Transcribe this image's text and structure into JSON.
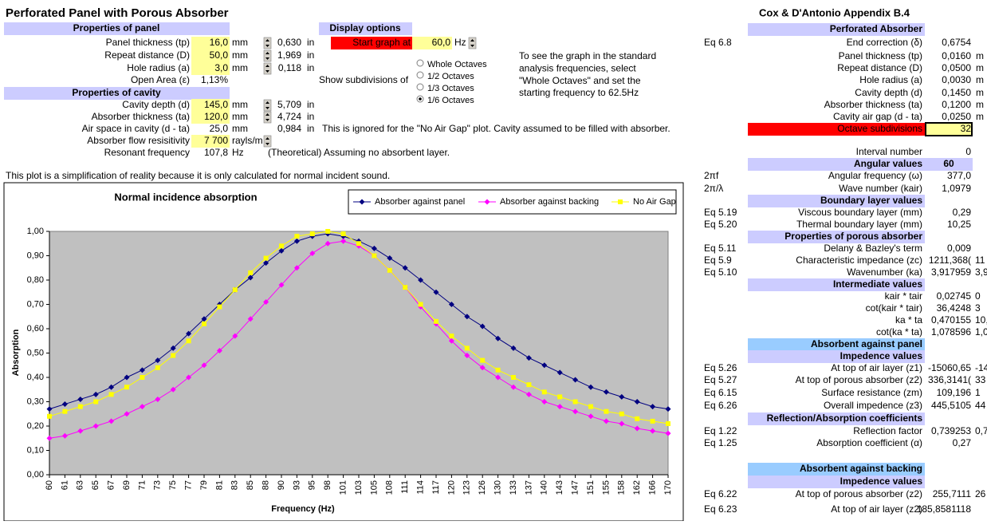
{
  "header": {
    "title": "Perforated Panel with Porous Absorber",
    "reference": "Cox & D'Antonio Appendix B.4"
  },
  "panel": {
    "heading": "Properties of panel",
    "rows": [
      {
        "label": "Panel thickness (tp)",
        "value": "16,0",
        "unit": "mm",
        "converted": "0,630",
        "converted_unit": "in",
        "input": true
      },
      {
        "label": "Repeat distance (D)",
        "value": "50,0",
        "unit": "mm",
        "converted": "1,969",
        "converted_unit": "in",
        "input": true
      },
      {
        "label": "Hole radius (a)",
        "value": "3,0",
        "unit": "mm",
        "converted": "0,118",
        "converted_unit": "in",
        "input": true
      },
      {
        "label": "Open Area (ε)",
        "value": "1,13%"
      }
    ]
  },
  "cavity": {
    "heading": "Properties of cavity",
    "rows": [
      {
        "label": "Cavity depth (d)",
        "value": "145,0",
        "unit": "mm",
        "converted": "5,709",
        "converted_unit": "in",
        "input": true
      },
      {
        "label": "Absorber thickness (ta)",
        "value": "120,0",
        "unit": "mm",
        "converted": "4,724",
        "converted_unit": "in",
        "input": true
      },
      {
        "label": "Air space in cavity (d - ta)",
        "value": "25,0",
        "unit": "mm",
        "converted": "0,984",
        "converted_unit": "in",
        "note": "This is ignored for the \"No Air Gap\" plot.  Cavity assumed to be filled with absorber."
      },
      {
        "label": "Absorber flow resisitivity",
        "value": "7 700",
        "unit": "rayls/m",
        "input": true
      },
      {
        "label": "Resonant frequency",
        "value": "107,8",
        "unit": "Hz",
        "note": "(Theoretical) Assuming no absorbent layer."
      }
    ]
  },
  "display": {
    "heading": "Display options",
    "start_label": "Start graph at",
    "start_value": "60,0",
    "start_unit": "Hz",
    "subdivisions_label": "Show subdivisions of",
    "options": [
      "Whole Octaves",
      "1/2 Octaves",
      "1/3 Octaves",
      "1/6 Octaves"
    ],
    "selected": 3,
    "hint": [
      "To see the graph in the standard",
      "analysis frequencies, select",
      "\"Whole Octaves\" and set the",
      "starting frequency to 62.5Hz"
    ]
  },
  "note": "This plot is a simplification of reality because it is only calculated for normal incident sound.",
  "calc": {
    "rows": [
      {
        "label": "Perforated Absorber",
        "kind": "header"
      },
      {
        "eq": "Eq 6.8",
        "label": "End correction (δ)",
        "value": "0,6754"
      },
      {
        "label": "Panel thickness (tp)",
        "value": "0,0160",
        "unit": "m"
      },
      {
        "label": "Repeat distance (D)",
        "value": "0,0500",
        "unit": "m"
      },
      {
        "label": "Hole radius (a)",
        "value": "0,0030",
        "unit": "m"
      },
      {
        "label": "Cavity depth (d)",
        "value": "0,1450",
        "unit": "m"
      },
      {
        "label": "Absorber thickness (ta)",
        "value": "0,1200",
        "unit": "m"
      },
      {
        "label": "Cavity air gap (d - ta)",
        "value": "0,0250",
        "unit": "m"
      },
      {
        "label": "Octave subdivisions",
        "value": "32",
        "kind": "input"
      },
      {
        "label": "Interval number",
        "value": "0"
      },
      {
        "label": "Angular values",
        "value": "60",
        "kind": "header"
      },
      {
        "eq": "2πf",
        "label": "Angular frequency (ω)",
        "value": "377,0"
      },
      {
        "eq": "2π/λ",
        "label": "Wave number (kair)",
        "value": "1,0979"
      },
      {
        "label": "Boundary layer values",
        "kind": "header"
      },
      {
        "eq": "Eq 5.19",
        "label": "Viscous boundary layer (mm)",
        "value": "0,29"
      },
      {
        "eq": "Eq 5.20",
        "label": "Thermal boundary layer (mm)",
        "value": "10,25"
      },
      {
        "label": "Properties of porous absorber",
        "kind": "header"
      },
      {
        "eq": "Eq 5.11",
        "label": "Delany & Bazley's term",
        "value": "0,009"
      },
      {
        "eq": "Eq 5.9",
        "label": "Characteristic impedance (zc)",
        "value": "1211,368(",
        "extra": "11"
      },
      {
        "eq": "Eq 5.10",
        "label": "Wavenumber (ka)",
        "value": "3,917959",
        "extra": "3,9"
      },
      {
        "label": "Intermediate values",
        "kind": "header"
      },
      {
        "label": "kair * tair",
        "value": "0,02745",
        "extra": "0"
      },
      {
        "label": "cot(kair * tair)",
        "value": "36,4248",
        "extra": "3"
      },
      {
        "label": "ka * ta",
        "value": "0,470155",
        "extra": "10,4"
      },
      {
        "label": "cot(ka * ta)",
        "value": "1,078596",
        "extra": "1,0"
      },
      {
        "label": "Absorbent against panel",
        "kind": "section"
      },
      {
        "label": "Impedence values",
        "kind": "header"
      },
      {
        "eq": "Eq 5.26",
        "label": "At top of air layer (z1)",
        "value": "-15060,65",
        "extra": "-14"
      },
      {
        "eq": "Eq 5.27",
        "label": "At top of porous absorber (z2)",
        "value": "336,3141(",
        "extra": "33"
      },
      {
        "eq": "Eq 6.15",
        "label": "Surface resistance (zm)",
        "value": "109,196",
        "extra": "1"
      },
      {
        "eq": "Eq 6.26",
        "label": "Overall impedence (z3)",
        "value": "445,5105",
        "extra": "44"
      },
      {
        "label": "Reflection/Absorption coefficients",
        "kind": "header"
      },
      {
        "eq": "Eq 1.22",
        "label": "Reflection factor",
        "value": "0,739253",
        "extra": "0,7"
      },
      {
        "eq": "Eq 1.25",
        "label": "Absorption coefficient (α)",
        "value": "0,27"
      },
      {
        "label": "Absorbent against backing",
        "kind": "section"
      },
      {
        "label": "Impedence values",
        "kind": "header"
      },
      {
        "eq": "Eq 6.22",
        "label": "At top of porous absorber (z2)",
        "value": "255,7111",
        "extra": "26"
      },
      {
        "eq": "Eq 6.23",
        "label": "At top of air layer (z2)",
        "value": "185,8581118"
      }
    ]
  },
  "chart_data": {
    "type": "line",
    "title": "Normal incidence absorption",
    "x_label": "Frequency (Hz)",
    "y_label": "Absorption",
    "categories": [
      60,
      61,
      63,
      65,
      67,
      69,
      71,
      73,
      75,
      77,
      79,
      81,
      83,
      85,
      88,
      90,
      93,
      95,
      98,
      101,
      103,
      105,
      108,
      111,
      114,
      117,
      120,
      123,
      126,
      130,
      133,
      137,
      140,
      143,
      147,
      151,
      155,
      158,
      162,
      166,
      170
    ],
    "ylim": [
      0,
      1
    ],
    "yticks": [
      {
        "value": 0,
        "label": "0,00"
      },
      {
        "value": 0.1,
        "label": "0,10"
      },
      {
        "value": 0.2,
        "label": "0,20"
      },
      {
        "value": 0.3,
        "label": "0,30"
      },
      {
        "value": 0.4,
        "label": "0,40"
      },
      {
        "value": 0.5,
        "label": "0,50"
      },
      {
        "value": 0.6,
        "label": "0,60"
      },
      {
        "value": 0.7,
        "label": "0,70"
      },
      {
        "value": 0.8,
        "label": "0,80"
      },
      {
        "value": 0.9,
        "label": "0,90"
      },
      {
        "value": 1,
        "label": "1,00"
      }
    ],
    "grid": false,
    "legend": "top-right",
    "series": [
      {
        "name": "Absorber against panel",
        "color": "#000080",
        "marker": "diamond",
        "values": [
          0.27,
          0.29,
          0.31,
          0.33,
          0.36,
          0.4,
          0.43,
          0.47,
          0.52,
          0.58,
          0.64,
          0.7,
          0.76,
          0.81,
          0.87,
          0.92,
          0.96,
          0.98,
          0.99,
          0.98,
          0.96,
          0.93,
          0.89,
          0.85,
          0.8,
          0.75,
          0.7,
          0.65,
          0.61,
          0.56,
          0.52,
          0.48,
          0.45,
          0.42,
          0.39,
          0.36,
          0.34,
          0.32,
          0.3,
          0.28,
          0.27
        ]
      },
      {
        "name": "Absorber against backing",
        "color": "#ff00ff",
        "marker": "diamond",
        "values": [
          0.15,
          0.16,
          0.18,
          0.2,
          0.22,
          0.25,
          0.28,
          0.31,
          0.35,
          0.4,
          0.45,
          0.51,
          0.57,
          0.64,
          0.71,
          0.78,
          0.85,
          0.91,
          0.95,
          0.96,
          0.94,
          0.9,
          0.84,
          0.77,
          0.69,
          0.62,
          0.55,
          0.49,
          0.44,
          0.4,
          0.36,
          0.33,
          0.3,
          0.28,
          0.26,
          0.24,
          0.22,
          0.21,
          0.19,
          0.18,
          0.17
        ]
      },
      {
        "name": "No Air Gap",
        "color": "#ffff00",
        "marker": "square",
        "values": [
          0.24,
          0.26,
          0.28,
          0.3,
          0.33,
          0.36,
          0.4,
          0.44,
          0.49,
          0.55,
          0.62,
          0.69,
          0.76,
          0.83,
          0.89,
          0.94,
          0.98,
          0.99,
          1.0,
          0.99,
          0.95,
          0.9,
          0.84,
          0.77,
          0.7,
          0.63,
          0.57,
          0.52,
          0.47,
          0.43,
          0.4,
          0.37,
          0.34,
          0.32,
          0.3,
          0.28,
          0.26,
          0.25,
          0.23,
          0.22,
          0.21
        ]
      }
    ]
  }
}
